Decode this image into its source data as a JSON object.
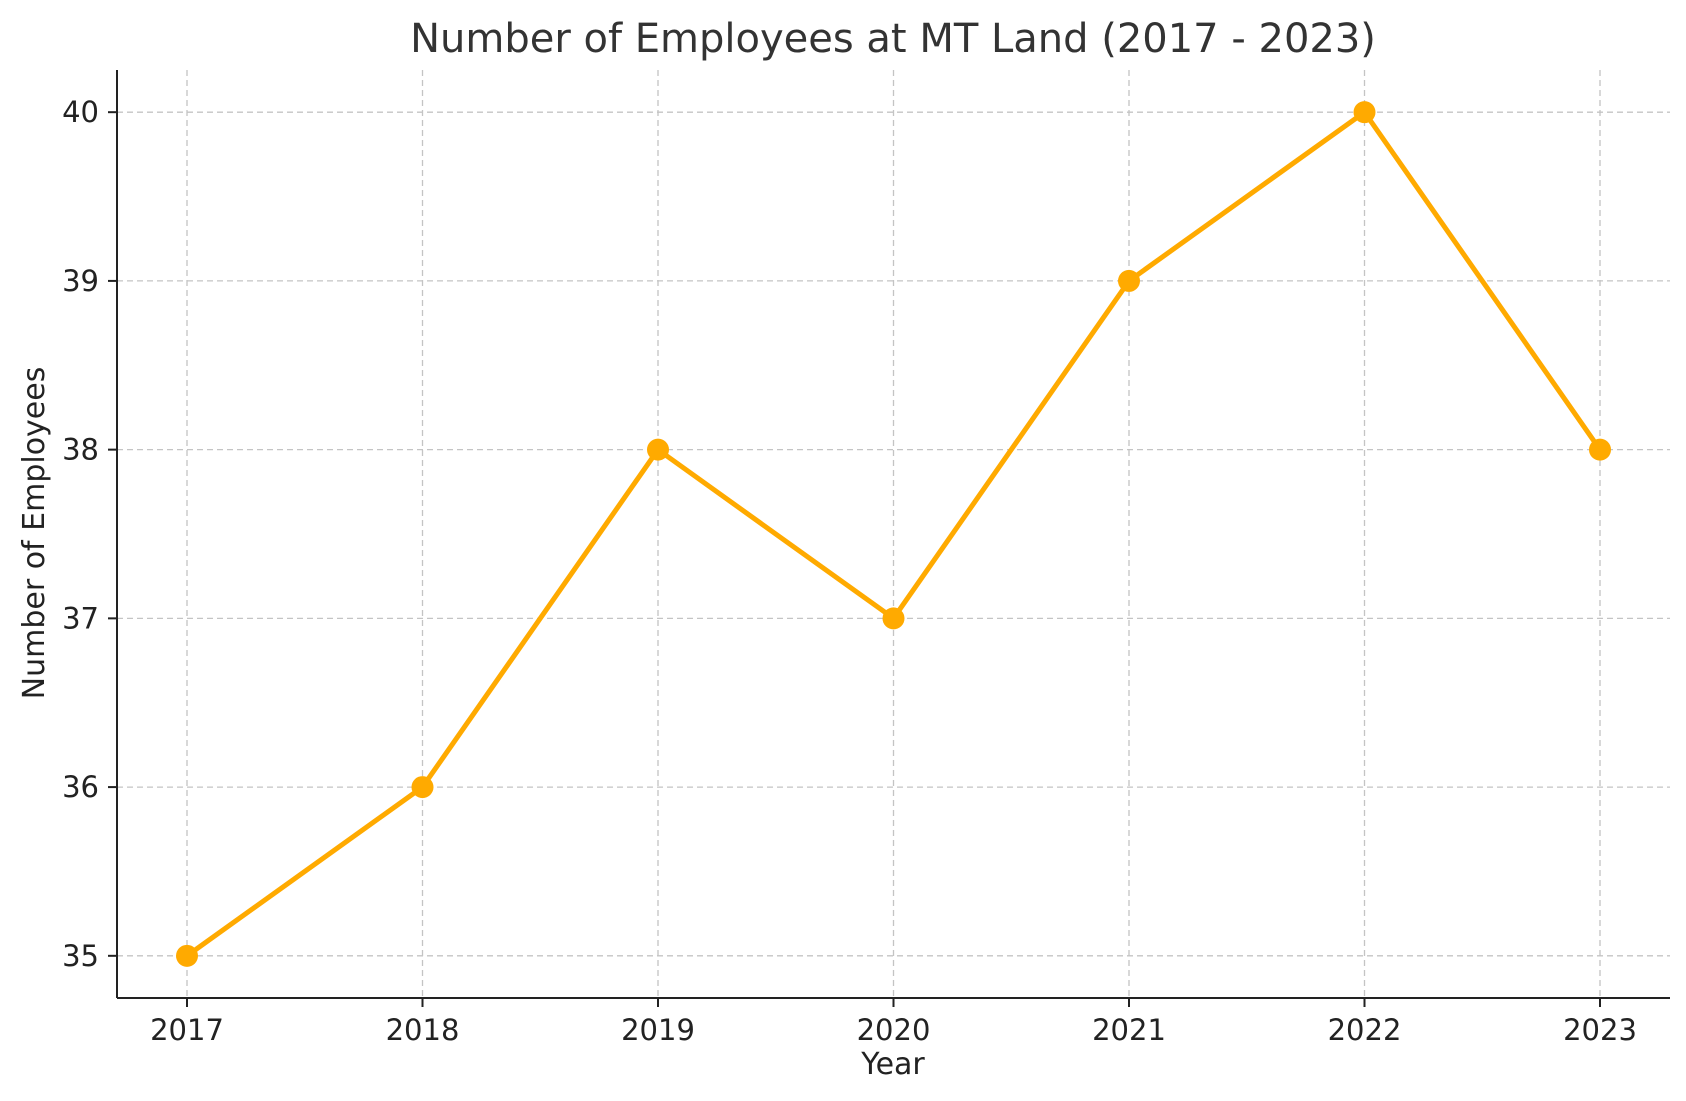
{
  "chart_data": {
    "type": "line",
    "title": "Number of Employees at MT Land (2017 - 2023)",
    "xlabel": "Year",
    "ylabel": "Number of Employees",
    "categories": [
      "2017",
      "2018",
      "2019",
      "2020",
      "2021",
      "2022",
      "2023"
    ],
    "series": [
      {
        "values": [
          35,
          36,
          38,
          37,
          39,
          40,
          38
        ],
        "color": "#FFAA00"
      }
    ],
    "yticks": [
      35,
      36,
      37,
      38,
      39,
      40
    ],
    "ylim": [
      34.75,
      40.25
    ],
    "grid": true,
    "marker": "circle"
  }
}
